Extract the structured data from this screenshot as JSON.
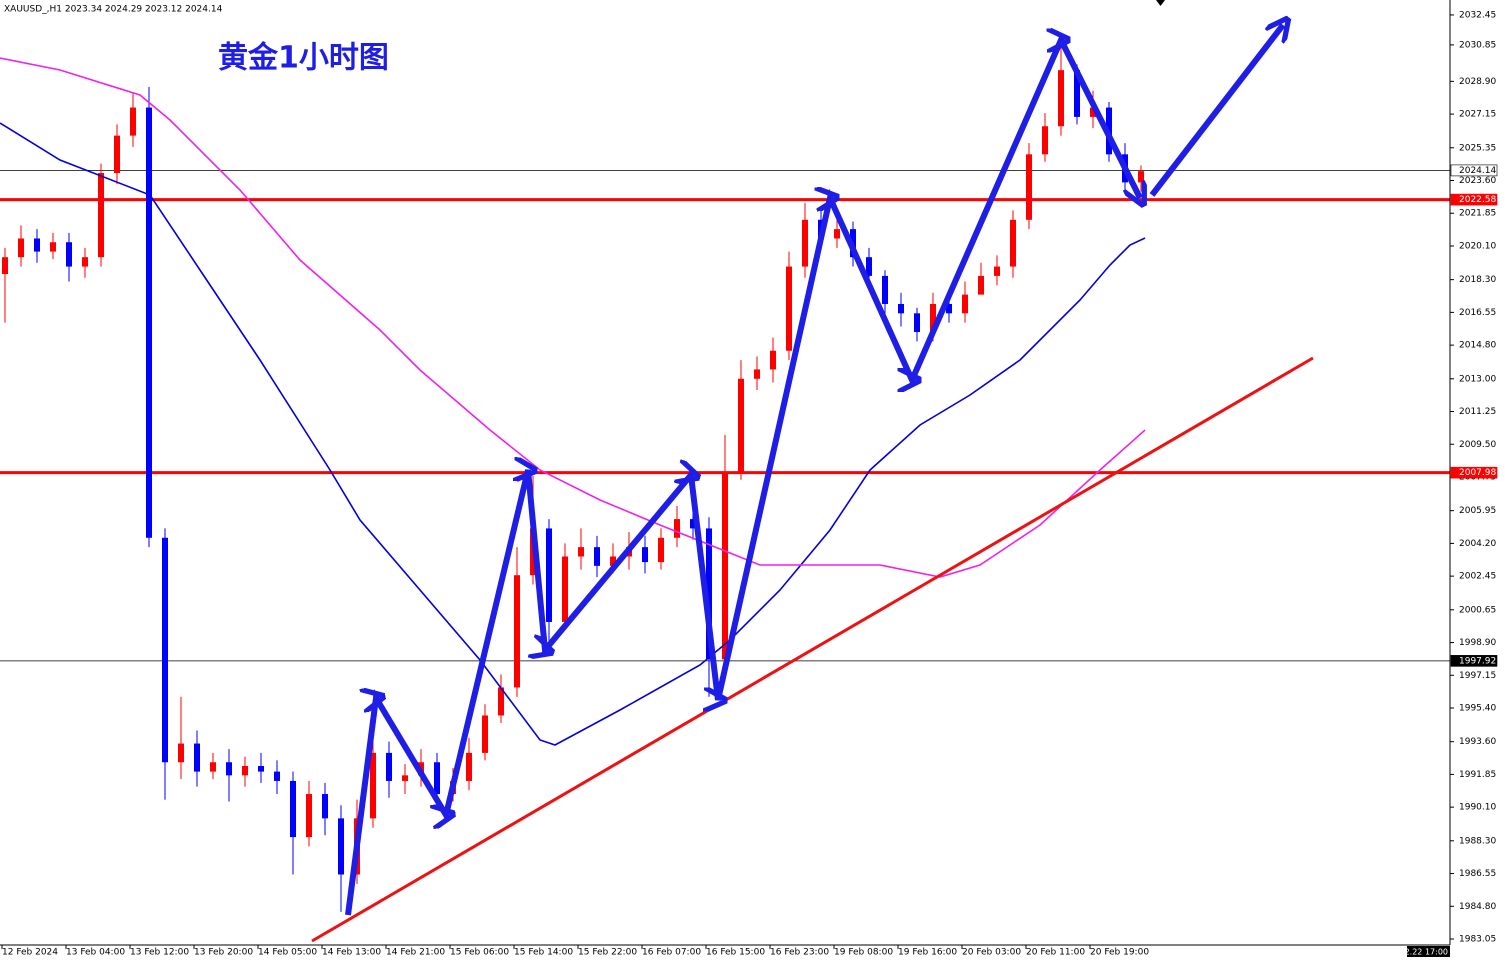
{
  "chart_data": {
    "type": "candlestick",
    "header": "XAUUSD_,H1  2023.34 2024.29 2023.12 2024.14",
    "title": "黄金1小时图",
    "bull_color": "#ff0000",
    "bear_color": "#0000ff",
    "ylim": [
      1982.73,
      2033.25
    ],
    "yticks": [
      2032.45,
      2030.85,
      {
        "value": 2028.9,
        "label": "2028.90"
      },
      2027.15,
      2025.35,
      {
        "value": 2023.6,
        "label": "2023.60"
      },
      2021.85,
      {
        "value": 2020.1,
        "label": "2020.10"
      },
      {
        "value": 2018.3,
        "label": "2018.30"
      },
      2016.55,
      {
        "value": 2014.8,
        "label": "2014.80"
      },
      {
        "value": 2013,
        "label": "2013.00"
      },
      2011.25,
      {
        "value": 2009.5,
        "label": "2009.50"
      },
      2007.75,
      2005.95,
      {
        "value": 2004.2,
        "label": "2004.20"
      },
      2002.45,
      2000.65,
      {
        "value": 1998.9,
        "label": "1998.90"
      },
      1997.15,
      {
        "value": 1995.4,
        "label": "1995.40"
      },
      {
        "value": 1993.6,
        "label": "1993.60"
      },
      1991.85,
      {
        "value": 1990.1,
        "label": "1990.10"
      },
      {
        "value": 1988.3,
        "label": "1988.30"
      },
      1986.55,
      {
        "value": 1984.8,
        "label": "1984.80"
      },
      1983.05
    ],
    "x_labels": [
      "12 Feb 2024",
      "13 Feb 04:00",
      "13 Feb 12:00",
      "13 Feb 20:00",
      "14 Feb 05:00",
      "14 Feb 13:00",
      "14 Feb 21:00",
      "15 Feb 06:00",
      "15 Feb 14:00",
      "15 Feb 22:00",
      "16 Feb 07:00",
      "16 Feb 15:00",
      "16 Feb 23:00",
      "19 Feb 08:00",
      "19 Feb 16:00",
      "20 Feb 03:00",
      "20 Feb 11:00",
      "20 Feb 19:00"
    ],
    "current_time": "2024.02.22 17:00",
    "levels": [
      {
        "value": 2024.14,
        "color": "#000000"
      },
      {
        "value": 2022.58,
        "color": "#ff0000"
      },
      {
        "value": 2007.98,
        "color": "#ff0000"
      },
      {
        "value": 1997.92,
        "color": "#000000"
      }
    ],
    "open": [
      2018.6,
      2019.5,
      2020.5,
      2019.8,
      2020.3,
      2019.0,
      2019.5,
      2024.0,
      2026.0,
      2027.5,
      2004.5,
      1992.5,
      1993.5,
      1992.0,
      1992.5,
      1991.8,
      1992.3,
      1992.0,
      1991.5,
      1988.5,
      1990.8,
      1989.5,
      1986.5,
      1989.5,
      1993.0,
      1991.5,
      1991.8,
      1992.5,
      1990.8,
      1991.5,
      1993.0,
      1995.0,
      1996.5,
      2002.5,
      2005.0,
      2000.0,
      2003.5,
      2004.0,
      2003.0,
      2003.5,
      2004.0,
      2003.2,
      2004.5,
      2005.5,
      2005.0,
      1998.0,
      2008.0,
      2013.0,
      2013.5,
      2014.5,
      2019.0,
      2021.5,
      2020.5,
      2021.0,
      2019.5,
      2018.5,
      2017.0,
      2016.5,
      2015.5,
      2017.0,
      2016.5,
      2017.5,
      2018.5,
      2019.0,
      2021.5,
      2025.0,
      2026.5,
      2029.5,
      2027.0,
      2027.5,
      2025.0,
      2023.5
    ],
    "high": [
      2020.0,
      2021.2,
      2021.0,
      2020.8,
      2020.8,
      2020.0,
      2024.5,
      2026.6,
      2028.3,
      2028.6,
      2005.0,
      1996.0,
      1994.2,
      1993.0,
      1993.2,
      1992.8,
      1993.0,
      1992.6,
      1992.0,
      1991.5,
      1991.4,
      1990.2,
      1990.5,
      1993.8,
      1993.6,
      1992.4,
      1993.2,
      1993.0,
      1992.2,
      1993.8,
      1995.6,
      1997.2,
      2004.0,
      2007.8,
      2005.5,
      2004.2,
      2005.0,
      2004.6,
      2004.2,
      2004.8,
      2004.6,
      2005.0,
      2006.2,
      2006.0,
      2005.6,
      2010.0,
      2014.0,
      2014.2,
      2015.2,
      2019.8,
      2022.4,
      2022.2,
      2021.6,
      2021.4,
      2020.0,
      2018.8,
      2017.6,
      2016.8,
      2017.6,
      2017.8,
      2018.2,
      2019.2,
      2019.6,
      2022.0,
      2025.6,
      2027.2,
      2030.8,
      2029.8,
      2028.4,
      2027.8,
      2025.6,
      2024.4
    ],
    "low": [
      2016.0,
      2019.0,
      2019.2,
      2019.4,
      2018.2,
      2018.4,
      2019.0,
      2023.4,
      2025.4,
      2004.0,
      1990.5,
      1991.6,
      1991.2,
      1991.6,
      1990.4,
      1991.2,
      1991.4,
      1990.8,
      1986.5,
      1988.0,
      1988.6,
      1984.5,
      1986.0,
      1989.0,
      1990.6,
      1990.8,
      1991.2,
      1990.0,
      1990.4,
      1991.0,
      1992.6,
      1994.6,
      1996.0,
      2002.0,
      1999.0,
      1999.6,
      2002.8,
      2002.4,
      2002.6,
      2002.8,
      2002.6,
      2002.8,
      2004.0,
      2004.4,
      1996.0,
      1997.5,
      2007.6,
      2012.4,
      2012.8,
      2014.0,
      2018.4,
      2020.0,
      2020.0,
      2019.0,
      2017.8,
      2016.4,
      2015.8,
      2015.0,
      2015.0,
      2016.0,
      2016.0,
      2017.6,
      2018.0,
      2018.4,
      2021.0,
      2024.6,
      2026.0,
      2026.6,
      2026.4,
      2024.6,
      2023.0,
      2023.0
    ],
    "close": [
      2019.5,
      2020.5,
      2019.8,
      2020.3,
      2019.0,
      2019.5,
      2024.0,
      2026.0,
      2027.5,
      2004.5,
      1992.5,
      1993.5,
      1992.0,
      1992.5,
      1991.8,
      1992.3,
      1992.0,
      1991.5,
      1988.5,
      1990.8,
      1989.5,
      1986.5,
      1989.5,
      1993.0,
      1991.5,
      1991.8,
      1992.5,
      1990.8,
      1991.5,
      1993.0,
      1995.0,
      1996.5,
      2002.5,
      2005.0,
      2000.0,
      2003.5,
      2004.0,
      2003.0,
      2003.5,
      2004.0,
      2003.2,
      2004.5,
      2005.5,
      2005.0,
      1998.0,
      2008.0,
      2013.0,
      2013.5,
      2014.5,
      2019.0,
      2021.5,
      2020.5,
      2021.0,
      2019.5,
      2018.5,
      2017.0,
      2016.5,
      2015.5,
      2017.0,
      2016.5,
      2017.5,
      2018.5,
      2019.0,
      2021.5,
      2025.0,
      2026.5,
      2029.5,
      2027.0,
      2027.5,
      2025.0,
      2023.5,
      2024.1
    ]
  }
}
